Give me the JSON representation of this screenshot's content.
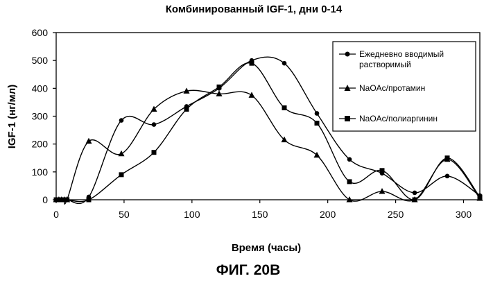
{
  "figure_caption": "ФИГ. 20B",
  "colors": {
    "ink": "#000000",
    "background": "#ffffff"
  },
  "chart_data": {
    "type": "line",
    "title": "Комбинированный IGF-1, дни 0-14",
    "xlabel": "Время (часы)",
    "ylabel": "IGF-1 (нг/мл)",
    "xlim": [
      0,
      312
    ],
    "ylim": [
      0,
      600
    ],
    "xticks": [
      0,
      50,
      100,
      150,
      200,
      250,
      300
    ],
    "yticks": [
      0,
      100,
      200,
      300,
      400,
      500,
      600
    ],
    "grid": false,
    "legend_position": "top-right",
    "series": [
      {
        "name": "Ежедневно вводимый растворимый",
        "marker": "circle",
        "x": [
          0,
          2,
          4,
          6,
          8,
          24,
          48,
          72,
          96,
          120,
          144,
          168,
          192,
          216,
          240,
          264,
          288,
          312
        ],
        "y": [
          0,
          0,
          0,
          0,
          0,
          10,
          285,
          270,
          335,
          400,
          500,
          490,
          310,
          145,
          95,
          25,
          85,
          15
        ]
      },
      {
        "name": "NaOAc/протамин",
        "marker": "triangle",
        "x": [
          0,
          2,
          4,
          6,
          8,
          24,
          48,
          72,
          96,
          120,
          144,
          168,
          192,
          216,
          240,
          264,
          288,
          312
        ],
        "y": [
          0,
          0,
          0,
          0,
          0,
          210,
          165,
          325,
          390,
          380,
          375,
          215,
          160,
          0,
          30,
          0,
          145,
          5
        ]
      },
      {
        "name": "NaOAc/полиаргинин",
        "marker": "square",
        "x": [
          0,
          2,
          4,
          6,
          8,
          24,
          48,
          72,
          96,
          120,
          144,
          168,
          192,
          216,
          240,
          264,
          288,
          312
        ],
        "y": [
          0,
          0,
          0,
          0,
          0,
          0,
          90,
          170,
          325,
          405,
          490,
          330,
          275,
          65,
          105,
          0,
          150,
          10
        ]
      }
    ]
  }
}
